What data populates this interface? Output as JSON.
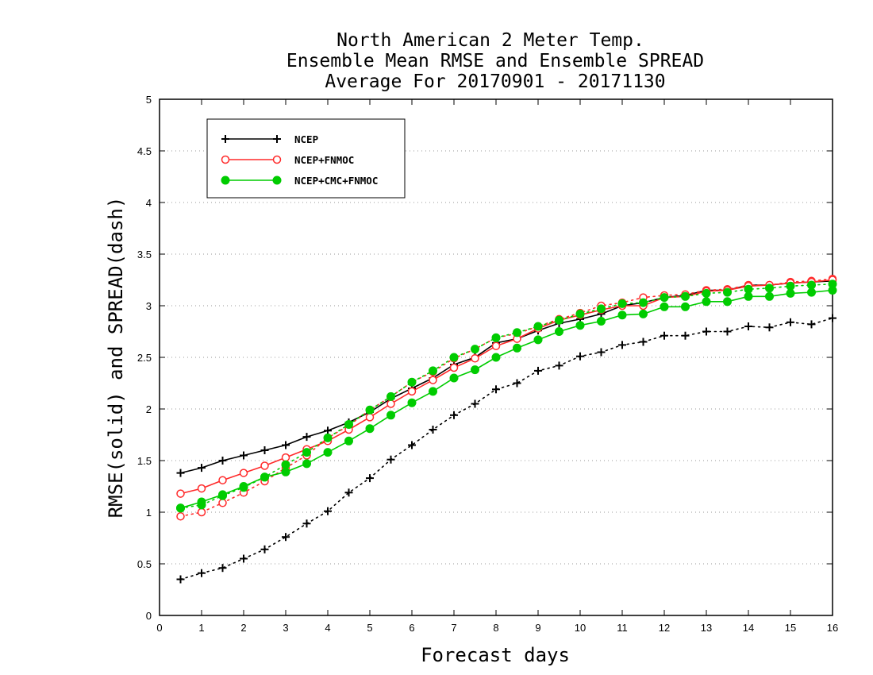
{
  "chart_data": {
    "type": "line",
    "title_lines": [
      "North American 2 Meter Temp.",
      "Ensemble Mean RMSE and Ensemble SPREAD",
      "Average For 20170901 - 20171130"
    ],
    "xlabel": "Forecast days",
    "ylabel": "RMSE(solid) and SPREAD(dash)",
    "xlim": [
      0,
      16
    ],
    "ylim": [
      0,
      5
    ],
    "x_ticks": [
      "0",
      "1",
      "2",
      "3",
      "4",
      "5",
      "6",
      "7",
      "8",
      "9",
      "10",
      "11",
      "12",
      "13",
      "14",
      "15",
      "16"
    ],
    "y_ticks": [
      "0",
      "0.5",
      "1",
      "1.5",
      "2",
      "2.5",
      "3",
      "3.5",
      "4",
      "4.5",
      "5"
    ],
    "grid": "horizontal dotted",
    "legend_position": "top-left",
    "x": [
      0.5,
      1,
      1.5,
      2,
      2.5,
      3,
      3.5,
      4,
      4.5,
      5,
      5.5,
      6,
      6.5,
      7,
      7.5,
      8,
      8.5,
      9,
      9.5,
      10,
      10.5,
      11,
      11.5,
      12,
      12.5,
      13,
      13.5,
      14,
      14.5,
      15,
      15.5,
      16
    ],
    "series": [
      {
        "name": "NCEP",
        "color": "#000000",
        "marker": "plus",
        "rmse": [
          1.38,
          1.43,
          1.5,
          1.55,
          1.6,
          1.65,
          1.73,
          1.79,
          1.87,
          1.97,
          2.1,
          2.2,
          2.3,
          2.43,
          2.5,
          2.64,
          2.68,
          2.76,
          2.83,
          2.87,
          2.92,
          3.0,
          3.03,
          3.08,
          3.1,
          3.15,
          3.15,
          3.2,
          3.2,
          3.22,
          3.23,
          3.24
        ],
        "spread": [
          0.35,
          0.41,
          0.46,
          0.55,
          0.64,
          0.76,
          0.89,
          1.01,
          1.19,
          1.33,
          1.51,
          1.65,
          1.8,
          1.94,
          2.05,
          2.19,
          2.25,
          2.37,
          2.42,
          2.51,
          2.55,
          2.62,
          2.65,
          2.71,
          2.71,
          2.75,
          2.75,
          2.8,
          2.79,
          2.84,
          2.82,
          2.88
        ]
      },
      {
        "name": "NCEP+FNMOC",
        "color": "#ff2a2a",
        "marker": "open-circle",
        "rmse": [
          1.18,
          1.23,
          1.31,
          1.38,
          1.45,
          1.53,
          1.61,
          1.69,
          1.8,
          1.92,
          2.05,
          2.17,
          2.28,
          2.4,
          2.49,
          2.61,
          2.68,
          2.78,
          2.86,
          2.91,
          2.96,
          3.0,
          3.0,
          3.08,
          3.09,
          3.14,
          3.15,
          3.19,
          3.2,
          3.22,
          3.23,
          3.25
        ],
        "spread": [
          0.96,
          1.0,
          1.09,
          1.19,
          1.3,
          1.43,
          1.55,
          1.72,
          1.84,
          1.99,
          2.12,
          2.26,
          2.36,
          2.49,
          2.58,
          2.69,
          2.73,
          2.8,
          2.87,
          2.93,
          3.0,
          3.03,
          3.08,
          3.1,
          3.11,
          3.15,
          3.16,
          3.2,
          3.2,
          3.23,
          3.24,
          3.26
        ]
      },
      {
        "name": "NCEP+CMC+FNMOC",
        "color": "#00cc00",
        "marker": "filled-circle",
        "rmse": [
          1.04,
          1.1,
          1.17,
          1.25,
          1.34,
          1.39,
          1.47,
          1.58,
          1.69,
          1.81,
          1.94,
          2.06,
          2.17,
          2.3,
          2.38,
          2.5,
          2.59,
          2.67,
          2.75,
          2.81,
          2.85,
          2.91,
          2.92,
          2.99,
          2.99,
          3.04,
          3.04,
          3.09,
          3.09,
          3.12,
          3.13,
          3.15
        ],
        "spread": [
          1.04,
          1.07,
          1.16,
          1.24,
          1.34,
          1.46,
          1.58,
          1.72,
          1.85,
          1.99,
          2.12,
          2.26,
          2.37,
          2.5,
          2.58,
          2.69,
          2.74,
          2.8,
          2.86,
          2.92,
          2.97,
          3.02,
          3.03,
          3.08,
          3.09,
          3.12,
          3.13,
          3.16,
          3.17,
          3.19,
          3.2,
          3.21
        ]
      }
    ]
  }
}
